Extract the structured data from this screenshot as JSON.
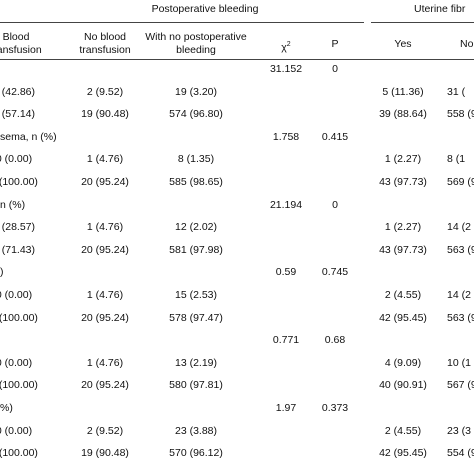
{
  "groups": {
    "postop": "Postoperative bleeding",
    "uterine": "Uterine fibr"
  },
  "headers": {
    "blood": [
      "Blood",
      "transfusion"
    ],
    "no_blood": [
      "No blood",
      "transfusion"
    ],
    "no_postop": [
      "With no postoperative",
      "bleeding"
    ],
    "chi": "χ",
    "chi_sup": "2",
    "p": "P",
    "yes": "Yes",
    "no": "No"
  },
  "rows": [
    {
      "label": "",
      "c1": "",
      "c2": "",
      "c3": "",
      "chi": "31.152",
      "p": "0",
      "yes": "",
      "no": ""
    },
    {
      "label": "",
      "c1": "3 (42.86)",
      "c2": "2 (9.52)",
      "c3": "19 (3.20)",
      "chi": "",
      "p": "",
      "yes": "5 (11.36)",
      "no": "31 ("
    },
    {
      "label": "",
      "c1": "4 (57.14)",
      "c2": "19 (90.48)",
      "c3": "574 (96.80)",
      "chi": "",
      "p": "",
      "yes": "39 (88.64)",
      "no": "558 (9"
    },
    {
      "label": "sema, n (%)",
      "c1": "",
      "c2": "",
      "c3": "",
      "chi": "1.758",
      "p": "0.415",
      "yes": "",
      "no": ""
    },
    {
      "label": "",
      "c1": "0 (0.00)",
      "c2": "1 (4.76)",
      "c3": "8 (1.35)",
      "chi": "",
      "p": "",
      "yes": "1 (2.27)",
      "no": "8 (1"
    },
    {
      "label": "",
      "c1": "7 (100.00)",
      "c2": "20 (95.24)",
      "c3": "585 (98.65)",
      "chi": "",
      "p": "",
      "yes": "43 (97.73)",
      "no": "569 (98"
    },
    {
      "label": "n (%)",
      "c1": "",
      "c2": "",
      "c3": "",
      "chi": "21.194",
      "p": "0",
      "yes": "",
      "no": ""
    },
    {
      "label": "",
      "c1": "2 (28.57)",
      "c2": "1 (4.76)",
      "c3": "12 (2.02)",
      "chi": "",
      "p": "",
      "yes": "1 (2.27)",
      "no": "14 (2"
    },
    {
      "label": "",
      "c1": "5 (71.43)",
      "c2": "20 (95.24)",
      "c3": "581 (97.98)",
      "chi": "",
      "p": "",
      "yes": "43 (97.73)",
      "no": "563 (97"
    },
    {
      "label": ")",
      "c1": "",
      "c2": "",
      "c3": "",
      "chi": "0.59",
      "p": "0.745",
      "yes": "",
      "no": ""
    },
    {
      "label": "",
      "c1": "0 (0.00)",
      "c2": "1 (4.76)",
      "c3": "15 (2.53)",
      "chi": "",
      "p": "",
      "yes": "2 (4.55)",
      "no": "14 (2"
    },
    {
      "label": "",
      "c1": "7 (100.00)",
      "c2": "20 (95.24)",
      "c3": "578 (97.47)",
      "chi": "",
      "p": "",
      "yes": "42 (95.45)",
      "no": "563 (97"
    },
    {
      "label": "",
      "c1": "",
      "c2": "",
      "c3": "",
      "chi": "0.771",
      "p": "0.68",
      "yes": "",
      "no": ""
    },
    {
      "label": "",
      "c1": "0 (0.00)",
      "c2": "1 (4.76)",
      "c3": "13 (2.19)",
      "chi": "",
      "p": "",
      "yes": "4 (9.09)",
      "no": "10 (1"
    },
    {
      "label": "",
      "c1": "7 (100.00)",
      "c2": "20 (95.24)",
      "c3": "580 (97.81)",
      "chi": "",
      "p": "",
      "yes": "40 (90.91)",
      "no": "567 (98"
    },
    {
      "label": "%)",
      "c1": "",
      "c2": "",
      "c3": "",
      "chi": "1.97",
      "p": "0.373",
      "yes": "",
      "no": ""
    },
    {
      "label": "",
      "c1": "0 (0.00)",
      "c2": "2 (9.52)",
      "c3": "23 (3.88)",
      "chi": "",
      "p": "",
      "yes": "2 (4.55)",
      "no": "23 (3"
    },
    {
      "label": "",
      "c1": "7 (100.00)",
      "c2": "19 (90.48)",
      "c3": "570 (96.12)",
      "chi": "",
      "p": "",
      "yes": "42 (95.45)",
      "no": "554 (96"
    }
  ]
}
